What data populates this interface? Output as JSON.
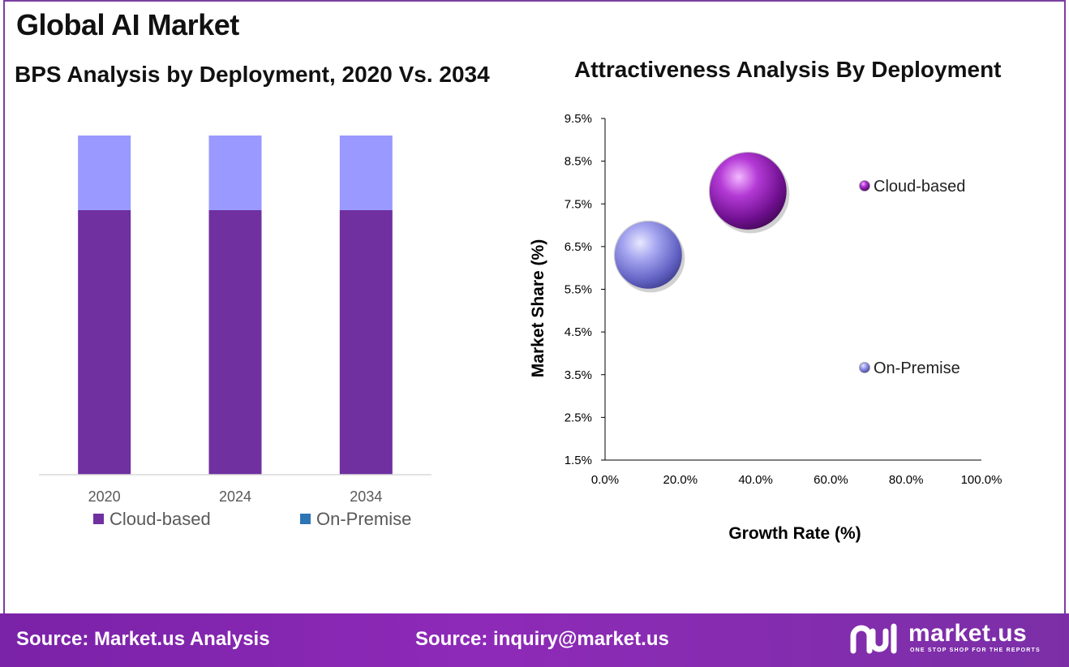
{
  "header": {
    "title": "Global AI Market",
    "left_subtitle": "BPS Analysis by Deployment, 2020 Vs. 2034",
    "right_subtitle": "Attractiveness Analysis By Deployment"
  },
  "chart_data": [
    {
      "type": "bar",
      "stacked": true,
      "title": "BPS Analysis by Deployment, 2020 Vs. 2034",
      "categories": [
        "2020",
        "2024",
        "2034"
      ],
      "series": [
        {
          "name": "Cloud-based",
          "values": [
            78,
            78,
            78
          ],
          "color": "#7030a0"
        },
        {
          "name": "On-Premise",
          "values": [
            22,
            22,
            22
          ],
          "color": "#9999ff"
        }
      ],
      "legend": [
        {
          "label": "Cloud-based",
          "color": "#7030a0"
        },
        {
          "label": "On-Premise",
          "color": "#2e75b6"
        }
      ],
      "ylim": [
        0,
        100
      ],
      "legend_placement": "bottom"
    },
    {
      "type": "scatter",
      "subtype": "bubble",
      "title": "Attractiveness Analysis By Deployment",
      "xlabel": "Growth Rate (%)",
      "ylabel": "Market Share (%)",
      "xlim": [
        0,
        100
      ],
      "ylim": [
        1.5,
        9.5
      ],
      "xticks": [
        "0.0%",
        "20.0%",
        "40.0%",
        "60.0%",
        "80.0%",
        "100.0%"
      ],
      "yticks": [
        "1.5%",
        "2.5%",
        "3.5%",
        "4.5%",
        "5.5%",
        "6.5%",
        "7.5%",
        "8.5%",
        "9.5%"
      ],
      "points": [
        {
          "name": "Cloud-based",
          "x": 38,
          "y": 7.8,
          "color": "#9b1fc2"
        },
        {
          "name": "On-Premise",
          "x": 11.5,
          "y": 6.3,
          "color": "#8f8fe6"
        }
      ],
      "legend_placement": "right"
    }
  ],
  "footer": {
    "source_left": "Source: Market.us Analysis",
    "source_right": "Source: inquiry@market.us",
    "logo_text": "market.us",
    "logo_tagline": "ONE STOP SHOP FOR THE REPORTS"
  }
}
